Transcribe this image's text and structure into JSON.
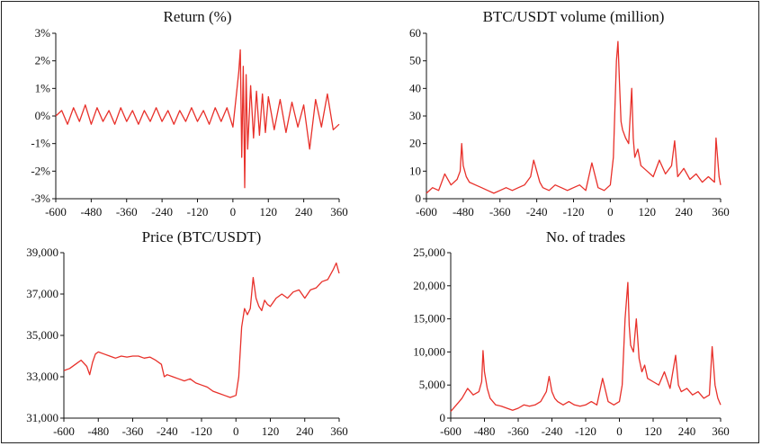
{
  "colors": {
    "series": "#e8302a",
    "axis": "#111111"
  },
  "chart_data": [
    {
      "type": "line",
      "title": "Return (%)",
      "xlabel": "",
      "ylabel": "",
      "xlim": [
        -600,
        360
      ],
      "ylim": [
        -3,
        3
      ],
      "x_ticks": [
        -600,
        -480,
        -360,
        -240,
        -120,
        0,
        120,
        240,
        360
      ],
      "y_ticks": [
        -3,
        -2,
        -1,
        0,
        1,
        2,
        3
      ],
      "x_tick_labels": [
        "-600",
        "-480",
        "-360",
        "-240",
        "-120",
        "0",
        "120",
        "240",
        "360"
      ],
      "y_tick_labels": [
        "-3%",
        "-2%",
        "-1%",
        "0%",
        "1%",
        "2%",
        "3%"
      ],
      "grid": false,
      "series": [
        {
          "x": [
            -600,
            -580,
            -560,
            -540,
            -520,
            -500,
            -480,
            -460,
            -440,
            -420,
            -400,
            -380,
            -360,
            -340,
            -320,
            -300,
            -280,
            -260,
            -240,
            -220,
            -200,
            -180,
            -160,
            -140,
            -120,
            -100,
            -80,
            -60,
            -40,
            -20,
            0,
            10,
            20,
            25,
            30,
            35,
            40,
            45,
            50,
            60,
            70,
            80,
            90,
            100,
            110,
            120,
            140,
            160,
            180,
            200,
            220,
            240,
            260,
            280,
            300,
            320,
            340,
            360
          ],
          "y": [
            0.0,
            0.2,
            -0.3,
            0.3,
            -0.2,
            0.4,
            -0.3,
            0.3,
            -0.2,
            0.2,
            -0.3,
            0.3,
            -0.2,
            0.2,
            -0.3,
            0.2,
            -0.2,
            0.3,
            -0.2,
            0.2,
            -0.3,
            0.2,
            -0.2,
            0.3,
            -0.2,
            0.2,
            -0.3,
            0.3,
            -0.2,
            0.3,
            -0.4,
            0.6,
            1.6,
            2.4,
            -1.5,
            1.8,
            -2.6,
            1.5,
            -1.2,
            1.1,
            -0.8,
            0.9,
            -0.7,
            0.8,
            -0.6,
            0.7,
            -0.5,
            0.6,
            -0.6,
            0.5,
            -0.4,
            0.4,
            -1.2,
            0.6,
            -0.4,
            0.8,
            -0.5,
            -0.3
          ]
        }
      ]
    },
    {
      "type": "line",
      "title": "BTC/USDT volume (million)",
      "xlabel": "",
      "ylabel": "",
      "xlim": [
        -600,
        360
      ],
      "ylim": [
        0,
        60
      ],
      "x_ticks": [
        -600,
        -480,
        -360,
        -240,
        -120,
        0,
        120,
        240,
        360
      ],
      "y_ticks": [
        0,
        10,
        20,
        30,
        40,
        50,
        60
      ],
      "x_tick_labels": [
        "-600",
        "-480",
        "-360",
        "-240",
        "-120",
        "0",
        "120",
        "240",
        "360"
      ],
      "y_tick_labels": [
        "0",
        "10",
        "20",
        "30",
        "40",
        "50",
        "60"
      ],
      "grid": false,
      "series": [
        {
          "x": [
            -600,
            -580,
            -560,
            -540,
            -520,
            -500,
            -490,
            -485,
            -480,
            -470,
            -460,
            -440,
            -420,
            -400,
            -380,
            -360,
            -340,
            -320,
            -300,
            -280,
            -260,
            -250,
            -240,
            -230,
            -220,
            -200,
            -180,
            -160,
            -140,
            -120,
            -100,
            -80,
            -60,
            -40,
            -20,
            0,
            10,
            20,
            25,
            30,
            35,
            40,
            50,
            60,
            70,
            75,
            80,
            90,
            100,
            120,
            140,
            160,
            180,
            200,
            210,
            220,
            240,
            260,
            280,
            300,
            320,
            340,
            345,
            355,
            360
          ],
          "y": [
            2,
            4,
            3,
            9,
            5,
            7,
            10,
            20,
            12,
            8,
            6,
            5,
            4,
            3,
            2,
            3,
            4,
            3,
            4,
            5,
            8,
            14,
            10,
            6,
            4,
            3,
            5,
            4,
            3,
            4,
            5,
            3,
            13,
            4,
            3,
            5,
            15,
            50,
            57,
            42,
            28,
            25,
            22,
            20,
            40,
            22,
            15,
            18,
            12,
            10,
            8,
            14,
            9,
            12,
            21,
            8,
            11,
            7,
            9,
            6,
            8,
            6,
            22,
            8,
            5
          ]
        }
      ]
    },
    {
      "type": "line",
      "title": "Price (BTC/USDT)",
      "xlabel": "",
      "ylabel": "",
      "xlim": [
        -600,
        360
      ],
      "ylim": [
        31000,
        39000
      ],
      "x_ticks": [
        -600,
        -480,
        -360,
        -240,
        -120,
        0,
        120,
        240,
        360
      ],
      "y_ticks": [
        31000,
        33000,
        35000,
        37000,
        39000
      ],
      "x_tick_labels": [
        "-600",
        "-480",
        "-360",
        "-240",
        "-120",
        "0",
        "120",
        "240",
        "360"
      ],
      "y_tick_labels": [
        "31,000",
        "33,000",
        "35,000",
        "37,000",
        "39,000"
      ],
      "grid": false,
      "series": [
        {
          "x": [
            -600,
            -580,
            -560,
            -540,
            -520,
            -510,
            -500,
            -490,
            -480,
            -460,
            -440,
            -420,
            -400,
            -380,
            -360,
            -340,
            -320,
            -300,
            -280,
            -260,
            -250,
            -240,
            -220,
            -200,
            -180,
            -160,
            -140,
            -120,
            -100,
            -80,
            -60,
            -40,
            -20,
            0,
            10,
            20,
            30,
            40,
            50,
            60,
            70,
            80,
            90,
            100,
            110,
            120,
            140,
            160,
            180,
            200,
            220,
            240,
            260,
            280,
            300,
            320,
            340,
            350,
            360
          ],
          "y": [
            33300,
            33400,
            33600,
            33800,
            33500,
            33100,
            33700,
            34100,
            34200,
            34100,
            34000,
            33900,
            34000,
            33950,
            34000,
            34000,
            33900,
            33950,
            33800,
            33600,
            33000,
            33100,
            33000,
            32900,
            32800,
            32900,
            32700,
            32600,
            32500,
            32300,
            32200,
            32100,
            32000,
            32100,
            33000,
            35400,
            36300,
            36000,
            36300,
            37800,
            36800,
            36400,
            36200,
            36700,
            36500,
            36400,
            36800,
            37000,
            36800,
            37100,
            37200,
            36800,
            37200,
            37300,
            37600,
            37700,
            38200,
            38500,
            38000
          ]
        }
      ]
    },
    {
      "type": "line",
      "title": "No. of trades",
      "xlabel": "",
      "ylabel": "",
      "xlim": [
        -600,
        360
      ],
      "ylim": [
        0,
        25000
      ],
      "x_ticks": [
        -600,
        -480,
        -360,
        -240,
        -120,
        0,
        120,
        240,
        360
      ],
      "y_ticks": [
        0,
        5000,
        10000,
        15000,
        20000,
        25000
      ],
      "x_tick_labels": [
        "-600",
        "-480",
        "-360",
        "-240",
        "-120",
        "0",
        "120",
        "240",
        "360"
      ],
      "y_tick_labels": [
        "0",
        "5,000",
        "10,000",
        "15,000",
        "20,000",
        "25,000"
      ],
      "grid": false,
      "series": [
        {
          "x": [
            -600,
            -580,
            -560,
            -540,
            -520,
            -500,
            -490,
            -485,
            -480,
            -470,
            -460,
            -440,
            -420,
            -400,
            -380,
            -360,
            -340,
            -320,
            -300,
            -280,
            -260,
            -250,
            -240,
            -230,
            -220,
            -200,
            -180,
            -160,
            -140,
            -120,
            -100,
            -80,
            -60,
            -40,
            -20,
            0,
            10,
            20,
            30,
            35,
            40,
            50,
            60,
            70,
            80,
            90,
            100,
            120,
            140,
            160,
            180,
            200,
            210,
            220,
            240,
            260,
            280,
            300,
            320,
            330,
            340,
            350,
            360
          ],
          "y": [
            1000,
            2000,
            3000,
            4500,
            3500,
            4000,
            5500,
            10200,
            7000,
            4500,
            3000,
            2000,
            1800,
            1500,
            1200,
            1500,
            2000,
            1800,
            2000,
            2500,
            4000,
            6300,
            4000,
            3000,
            2500,
            2000,
            2500,
            2000,
            1800,
            2000,
            2500,
            2000,
            6000,
            2500,
            2000,
            2500,
            5000,
            15000,
            20500,
            14000,
            11000,
            10000,
            15000,
            9000,
            7000,
            8000,
            6000,
            5500,
            5000,
            7000,
            4500,
            9500,
            5000,
            4000,
            4500,
            3500,
            4000,
            3000,
            3500,
            10800,
            5000,
            3000,
            2000
          ]
        }
      ]
    }
  ]
}
